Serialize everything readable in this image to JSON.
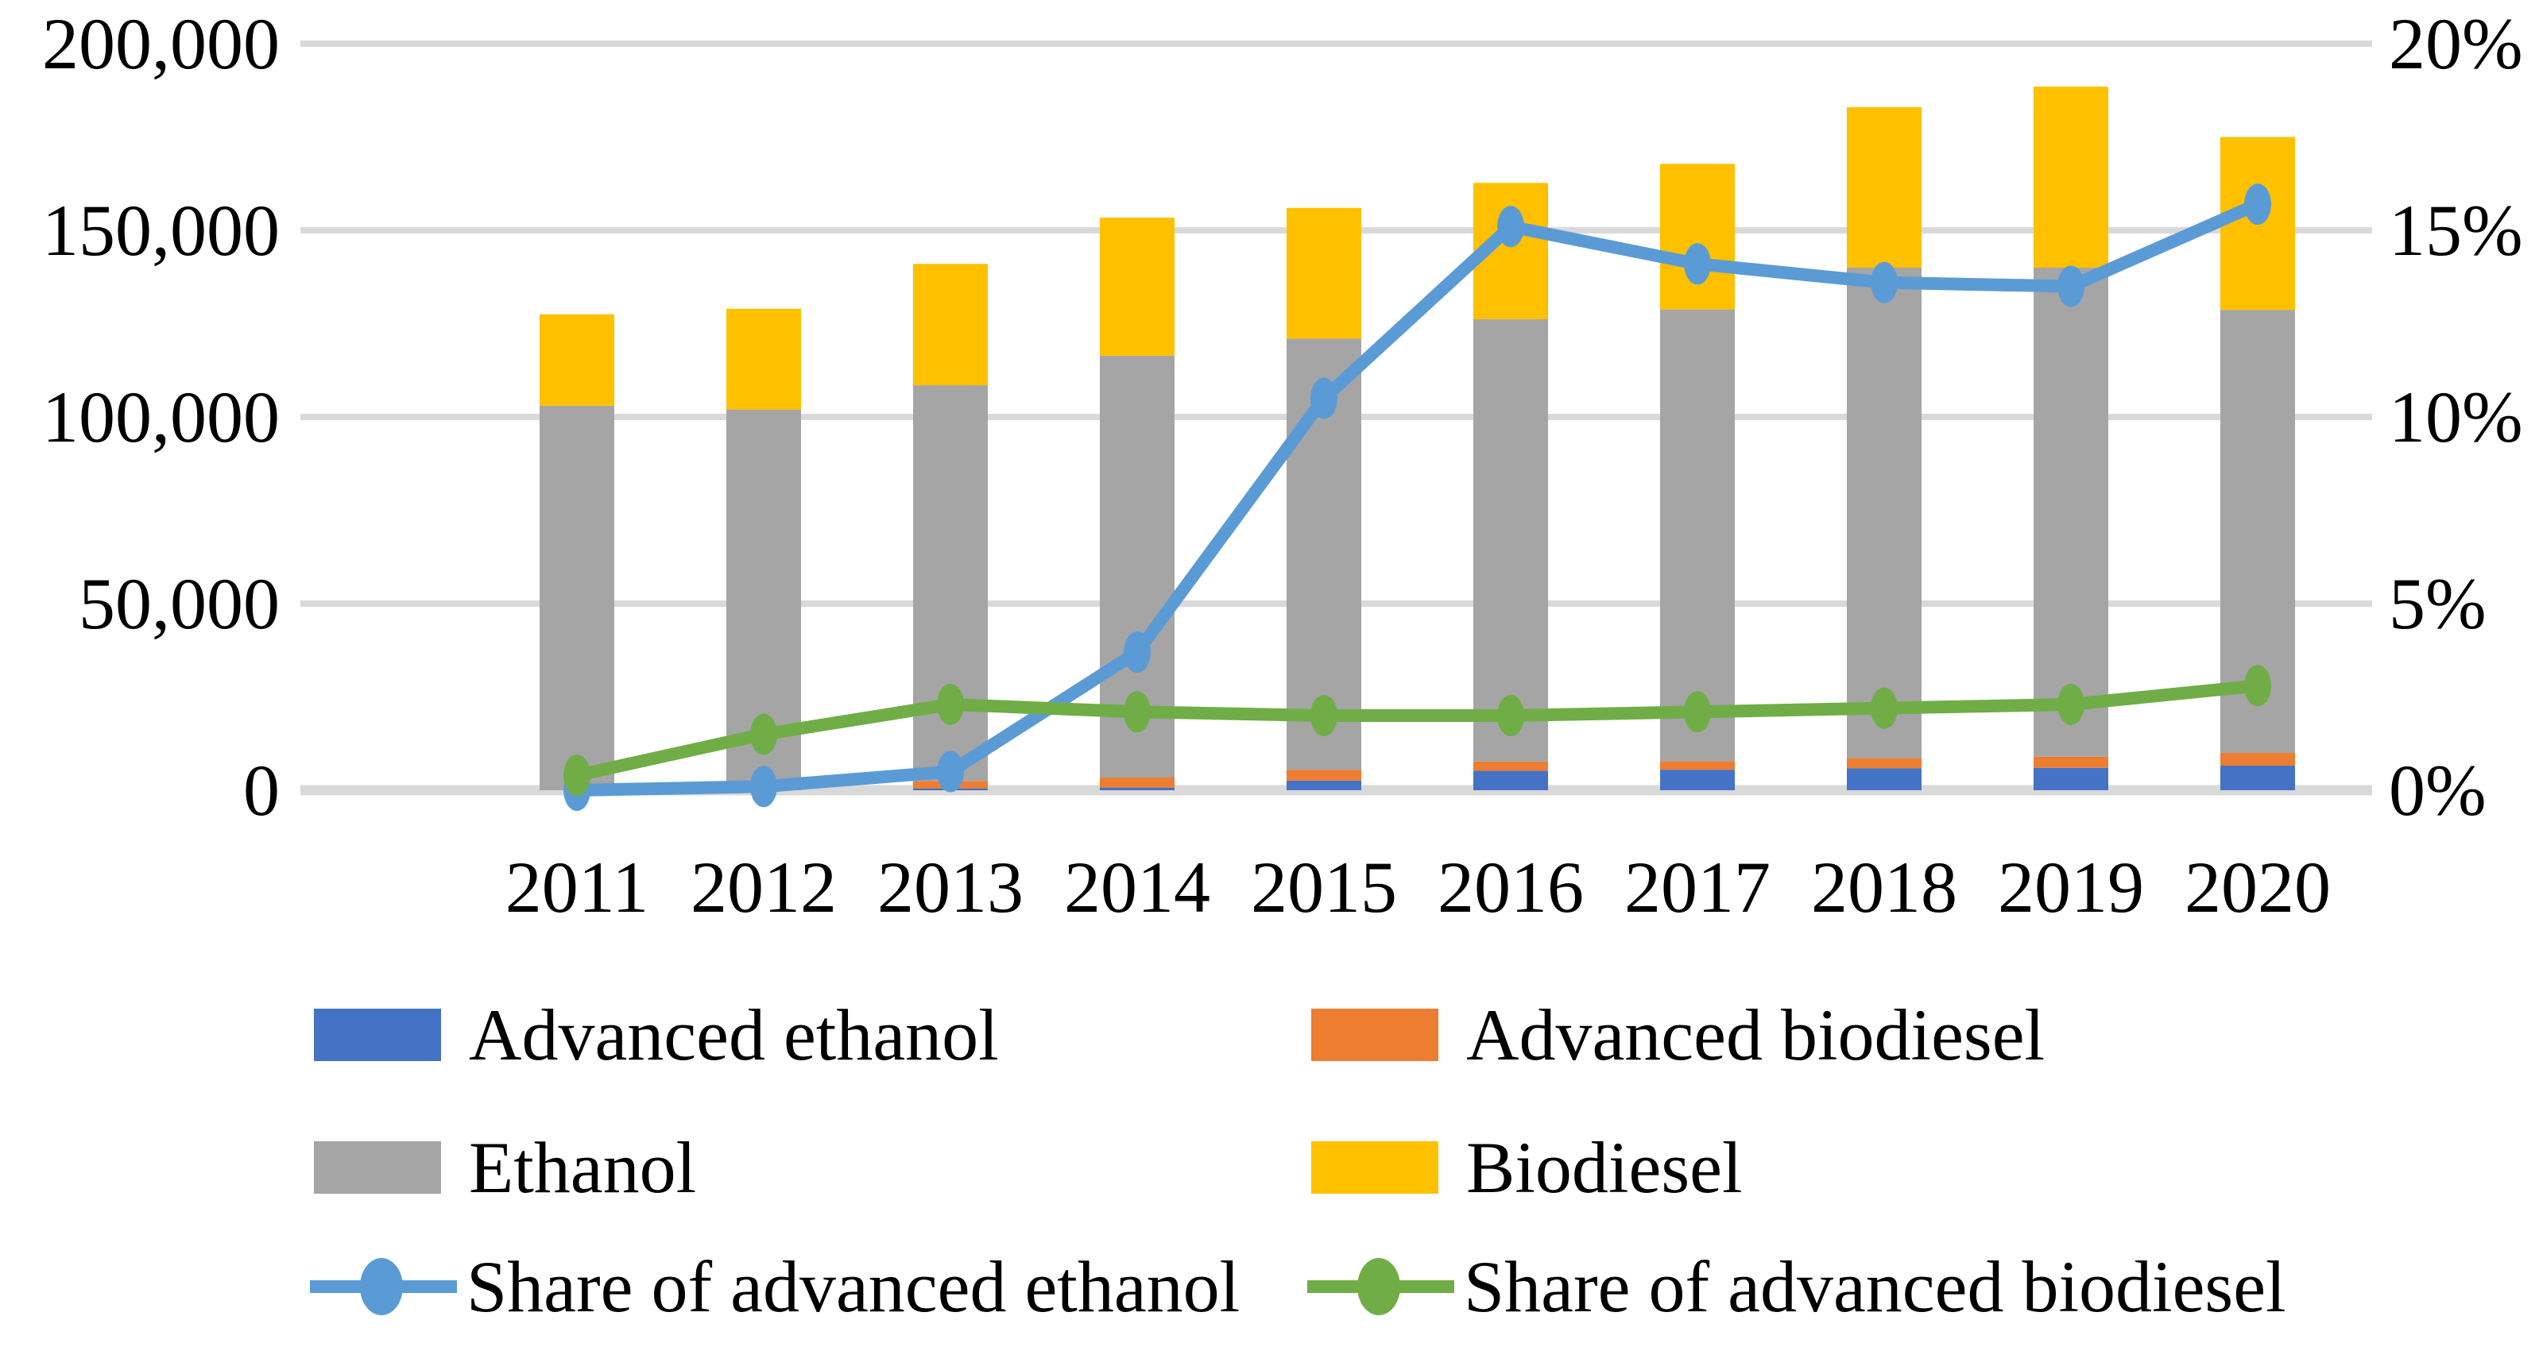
{
  "chart_data": {
    "type": "combo-stacked-bar-line",
    "title": "",
    "categories": [
      "2011",
      "2012",
      "2013",
      "2014",
      "2015",
      "2016",
      "2017",
      "2018",
      "2019",
      "2020"
    ],
    "bar_series": [
      {
        "name": "Advanced ethanol",
        "color": "#4472C4",
        "values": [
          0,
          0,
          500,
          700,
          2600,
          5200,
          5500,
          5900,
          6000,
          6600
        ]
      },
      {
        "name": "Advanced biodiesel",
        "color": "#ED7D31",
        "values": [
          0,
          0,
          2000,
          2700,
          2900,
          2500,
          2300,
          2700,
          3000,
          3400
        ]
      },
      {
        "name": "Ethanol",
        "color": "#A5A5A5",
        "values": [
          103000,
          102000,
          106000,
          113000,
          115500,
          118500,
          121000,
          131400,
          131000,
          118700
        ]
      },
      {
        "name": "Biodiesel",
        "color": "#FFC000",
        "values": [
          24500,
          27000,
          32500,
          37000,
          35000,
          36500,
          39000,
          43000,
          48500,
          46300
        ]
      }
    ],
    "bar_totals": [
      127500,
      129000,
      141000,
      153400,
      156000,
      162700,
      167800,
      183000,
      188500,
      175000
    ],
    "line_series": [
      {
        "name": "Share of advanced ethanol",
        "color": "#5B9BD5",
        "axis": "right",
        "values_pct": [
          0.0,
          0.1,
          0.5,
          3.7,
          10.5,
          15.1,
          14.1,
          13.6,
          13.5,
          15.7
        ]
      },
      {
        "name": "Share of advanced biodiesel",
        "color": "#70AD47",
        "axis": "right",
        "values_pct": [
          0.4,
          1.5,
          2.3,
          2.1,
          2.0,
          2.0,
          2.1,
          2.2,
          2.3,
          2.8
        ]
      }
    ],
    "left_axis": {
      "min": 0,
      "max": 200000,
      "ticks": [
        {
          "label": "200,000",
          "value": 200000
        },
        {
          "label": "150,000",
          "value": 150000
        },
        {
          "label": "100,000",
          "value": 100000
        },
        {
          "label": "50,000",
          "value": 50000
        },
        {
          "label": "0",
          "value": 0
        }
      ]
    },
    "right_axis": {
      "min": 0,
      "max": 20,
      "ticks": [
        {
          "label": "20%",
          "value": 20
        },
        {
          "label": "15%",
          "value": 15
        },
        {
          "label": "10%",
          "value": 10
        },
        {
          "label": "5%",
          "value": 5
        },
        {
          "label": "0%",
          "value": 0
        }
      ]
    },
    "grid": true,
    "gridline_color": "#D9D9D9",
    "background_color": "#FFFFFF",
    "text_color": "#000000",
    "legend_position": "bottom",
    "legend": {
      "rows": [
        [
          {
            "kind": "bar",
            "label": "Advanced ethanol",
            "color": "#4472C4"
          },
          {
            "kind": "bar",
            "label": "Advanced biodiesel",
            "color": "#ED7D31"
          }
        ],
        [
          {
            "kind": "bar",
            "label": "Ethanol",
            "color": "#A5A5A5"
          },
          {
            "kind": "bar",
            "label": "Biodiesel",
            "color": "#FFC000"
          }
        ],
        [
          {
            "kind": "line",
            "label": "Share of advanced ethanol",
            "color": "#5B9BD5"
          },
          {
            "kind": "line",
            "label": "Share of advanced biodiesel",
            "color": "#70AD47"
          }
        ]
      ]
    }
  }
}
